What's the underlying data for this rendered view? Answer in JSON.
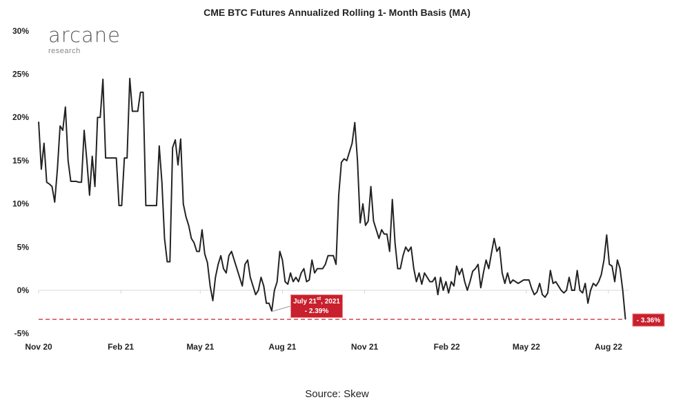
{
  "chart_data": {
    "type": "line",
    "title": "CME BTC Futures Annualized Rolling 1- Month Basis (MA)",
    "source": "Source: Skew",
    "logo": {
      "name": "arcane",
      "sub": "research"
    },
    "xlabel": "",
    "ylabel": "",
    "ylim": [
      -5,
      30
    ],
    "y_ticks": [
      30,
      25,
      20,
      15,
      10,
      5,
      0,
      -5
    ],
    "y_tick_labels": [
      "30%",
      "25%",
      "20%",
      "15%",
      "10%",
      "5%",
      "0%",
      "-5%"
    ],
    "x_ticks": [
      "2020-11-01",
      "2021-02-01",
      "2021-05-01",
      "2021-08-01",
      "2021-11-01",
      "2022-02-01",
      "2022-05-01",
      "2022-08-01"
    ],
    "x_tick_labels": [
      "Nov 20",
      "Feb 21",
      "May 21",
      "Aug 21",
      "Nov 21",
      "Feb 22",
      "May 22",
      "Aug 22"
    ],
    "grid": false,
    "line_color": "#222222",
    "annotation_color": "#c8202e",
    "series": [
      {
        "start_date": "2020-11-01",
        "interval_days": 3,
        "values": [
          19.5,
          14,
          17,
          12.5,
          12.3,
          12,
          10.2,
          14,
          19,
          18.5,
          21.2,
          15,
          12.6,
          12.6,
          12.6,
          12.5,
          12.5,
          18.5,
          15,
          11,
          15.5,
          12,
          20,
          20,
          24.4,
          15.3,
          15.3,
          15.3,
          15.3,
          15.3,
          9.8,
          9.8,
          15.3,
          15.3,
          24.5,
          20.7,
          20.7,
          20.7,
          22.9,
          22.9,
          9.8,
          9.8,
          9.8,
          9.8,
          9.8,
          16.7,
          12.5,
          6,
          3.3,
          3.3,
          16.5,
          17.4,
          14.5,
          17.5,
          10,
          8.5,
          7.5,
          6,
          5.5,
          4.5,
          4.5,
          7,
          4.2,
          3.2,
          0.5,
          -1.2,
          1.5,
          3,
          4,
          2.5,
          2,
          4,
          4.5,
          3.5,
          2.5,
          1.5,
          0.5,
          3,
          3.5,
          1.5,
          0.5,
          -0.5,
          0,
          1.5,
          0.5,
          -1.5,
          -1.5,
          -2.39,
          0,
          1,
          4.5,
          3.5,
          1,
          0.7,
          2,
          1,
          1.5,
          1,
          2,
          2.5,
          1,
          1.2,
          3.5,
          2,
          2.5,
          2.5,
          2.5,
          3,
          4,
          4,
          4,
          3,
          11,
          14.8,
          15.2,
          15,
          16,
          17,
          19.4,
          15,
          7.8,
          10,
          7.5,
          8,
          12,
          8,
          7,
          6,
          7,
          6.5,
          6.5,
          4.5,
          10.5,
          5.5,
          2.5,
          2.5,
          4,
          5,
          4.5,
          5,
          2.5,
          1,
          2,
          0.7,
          2,
          1.5,
          1,
          1,
          1.5,
          -0.5,
          1.5,
          0,
          1,
          -0.3,
          1,
          0.5,
          2.8,
          1.8,
          2.5,
          1,
          0,
          1,
          2.2,
          2.5,
          3,
          0.3,
          2,
          3.5,
          2.5,
          4.3,
          6,
          4.5,
          5,
          2,
          0.8,
          2,
          0.8,
          1.2,
          1,
          0.8,
          1,
          1.2,
          1.2,
          1.2,
          0.2,
          -0.5,
          -0.2,
          0.8,
          -0.5,
          -0.8,
          -0.3,
          2.3,
          0.8,
          1,
          0.5,
          0,
          -0.3,
          0,
          1.5,
          0,
          0,
          2.3,
          0,
          -0.3,
          0.8,
          -1.5,
          0,
          0.8,
          0.5,
          1,
          1.8,
          3.5,
          6.4,
          3,
          2.8,
          1,
          3.5,
          2.5,
          0,
          -3.36
        ]
      }
    ],
    "annotations": [
      {
        "date": "2021-07-21",
        "value": -2.39,
        "label_line1": "July 21",
        "label_sup": "st",
        "label_line1_end": ", 2021",
        "label_line2": "- 2.39%"
      },
      {
        "date": "2022-08-20",
        "value": -3.36,
        "label": "- 3.36%",
        "reference_line": "dashed"
      }
    ]
  }
}
